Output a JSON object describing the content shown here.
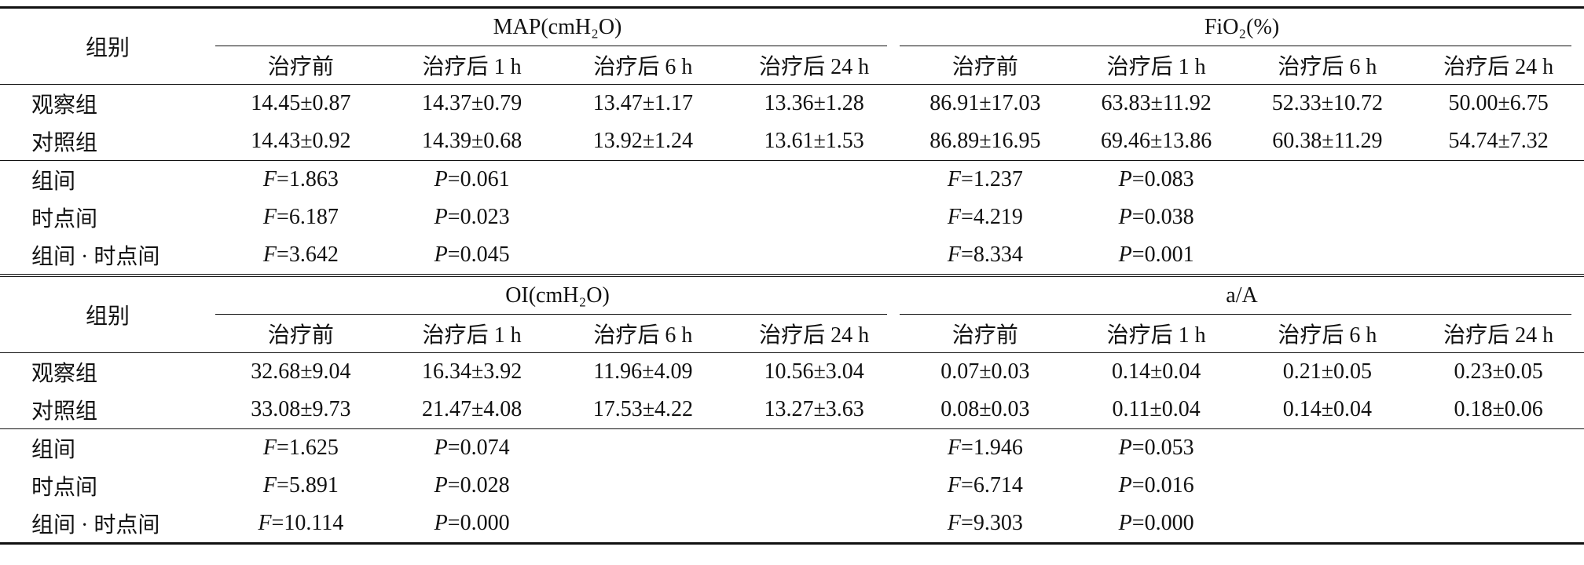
{
  "blocks": [
    {
      "header": {
        "group_label": "组别",
        "groups": [
          "MAP(cmH₂O)",
          "FiO₂(%)"
        ],
        "timepoints": [
          "治疗前",
          "治疗后 1 h",
          "治疗后 6 h",
          "治疗后 24 h",
          "治疗前",
          "治疗后 1 h",
          "治疗后 6 h",
          "治疗后 24 h"
        ]
      },
      "rows": [
        {
          "label": "观察组",
          "values": [
            "14.45±0.87",
            "14.37±0.79",
            "13.47±1.17",
            "13.36±1.28",
            "86.91±17.03",
            "63.83±11.92",
            "52.33±10.72",
            "50.00±6.75"
          ]
        },
        {
          "label": "对照组",
          "values": [
            "14.43±0.92",
            "14.39±0.68",
            "13.92±1.24",
            "13.61±1.53",
            "86.89±16.95",
            "69.46±13.86",
            "60.38±11.29",
            "54.74±7.32"
          ]
        }
      ],
      "stats": [
        {
          "label": "组间",
          "cells": [
            "F=1.863",
            "P=0.061",
            "F=1.237",
            "P=0.083"
          ]
        },
        {
          "label": "时点间",
          "cells": [
            "F=6.187",
            "P=0.023",
            "F=4.219",
            "P=0.038"
          ]
        },
        {
          "label": "组间 · 时点间",
          "cells": [
            "F=3.642",
            "P=0.045",
            "F=8.334",
            "P=0.001"
          ]
        }
      ]
    },
    {
      "header": {
        "group_label": "组别",
        "groups": [
          "OI(cmH₂O)",
          "a/A"
        ],
        "timepoints": [
          "治疗前",
          "治疗后 1 h",
          "治疗后 6 h",
          "治疗后 24 h",
          "治疗前",
          "治疗后 1 h",
          "治疗后 6 h",
          "治疗后 24 h"
        ]
      },
      "rows": [
        {
          "label": "观察组",
          "values": [
            "32.68±9.04",
            "16.34±3.92",
            "11.96±4.09",
            "10.56±3.04",
            "0.07±0.03",
            "0.14±0.04",
            "0.21±0.05",
            "0.23±0.05"
          ]
        },
        {
          "label": "对照组",
          "values": [
            "33.08±9.73",
            "21.47±4.08",
            "17.53±4.22",
            "13.27±3.63",
            "0.08±0.03",
            "0.11±0.04",
            "0.14±0.04",
            "0.18±0.06"
          ]
        }
      ],
      "stats": [
        {
          "label": "组间",
          "cells": [
            "F=1.625",
            "P=0.074",
            "F=1.946",
            "P=0.053"
          ]
        },
        {
          "label": "时点间",
          "cells": [
            "F=5.891",
            "P=0.028",
            "F=6.714",
            "P=0.016"
          ]
        },
        {
          "label": "组间 · 时点间",
          "cells": [
            "F=10.114",
            "P=0.000",
            "F=9.303",
            "P=0.000"
          ]
        }
      ]
    }
  ]
}
